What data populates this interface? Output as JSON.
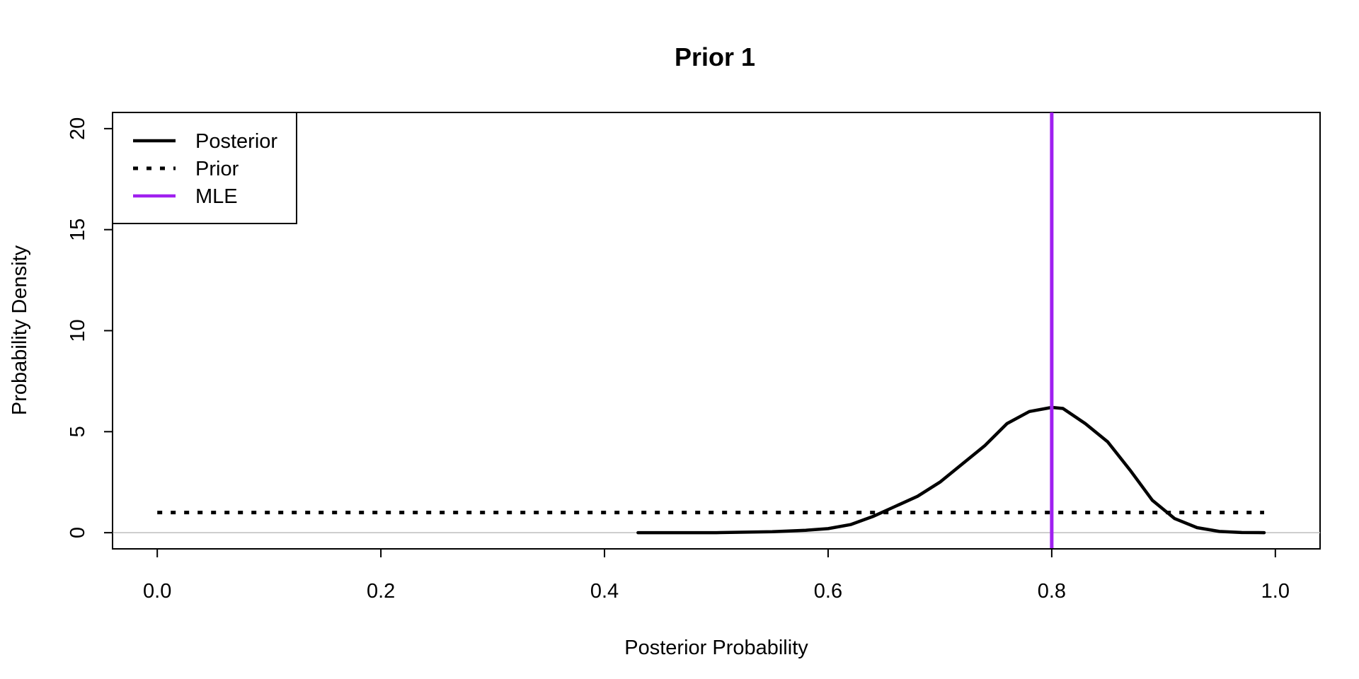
{
  "chart_data": {
    "type": "line",
    "title": "Prior 1",
    "xlabel": "Posterior Probability",
    "ylabel": "Probability Density",
    "xlim": [
      -0.04,
      1.04
    ],
    "ylim": [
      -0.8,
      20.8
    ],
    "xticks": [
      "0.0",
      "0.2",
      "0.4",
      "0.6",
      "0.8",
      "1.0"
    ],
    "xtick_values": [
      0.0,
      0.2,
      0.4,
      0.6,
      0.8,
      1.0
    ],
    "yticks": [
      "0",
      "5",
      "10",
      "15",
      "20"
    ],
    "ytick_values": [
      0,
      5,
      10,
      15,
      20
    ],
    "grid": false,
    "zero_line": true,
    "legend": {
      "position": "top-left",
      "entries": [
        {
          "label": "Posterior",
          "style": "solid",
          "color": "#000000"
        },
        {
          "label": "Prior",
          "style": "dotted",
          "color": "#000000"
        },
        {
          "label": "MLE",
          "style": "solid",
          "color": "#a020f0"
        }
      ]
    },
    "series": [
      {
        "name": "Posterior",
        "style": "solid",
        "color": "#000000",
        "x": [
          0.43,
          0.5,
          0.55,
          0.58,
          0.6,
          0.62,
          0.64,
          0.66,
          0.68,
          0.7,
          0.72,
          0.74,
          0.76,
          0.78,
          0.8,
          0.81,
          0.83,
          0.85,
          0.87,
          0.89,
          0.91,
          0.93,
          0.95,
          0.97,
          0.99
        ],
        "y": [
          0.0,
          0.0,
          0.05,
          0.12,
          0.2,
          0.4,
          0.8,
          1.3,
          1.8,
          2.5,
          3.4,
          4.3,
          5.4,
          6.0,
          6.2,
          6.15,
          5.4,
          4.5,
          3.1,
          1.6,
          0.7,
          0.25,
          0.06,
          0.01,
          0.0
        ]
      },
      {
        "name": "Prior",
        "style": "dotted",
        "color": "#000000",
        "x": [
          0.0,
          0.99
        ],
        "y": [
          1.0,
          1.0
        ]
      }
    ],
    "vlines": [
      {
        "name": "MLE",
        "x": 0.8,
        "color": "#a020f0"
      }
    ]
  }
}
